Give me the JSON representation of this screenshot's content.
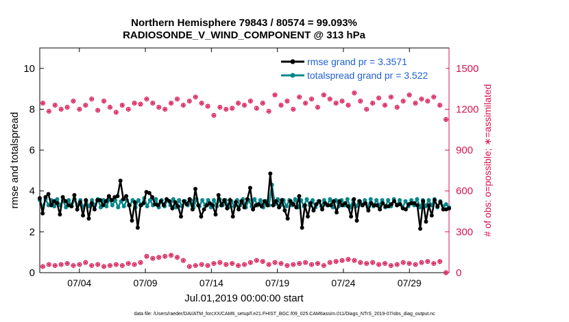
{
  "chart_data": {
    "type": "line",
    "title_line1": "Northern Hemisphere 79843 / 80574 = 99.093%",
    "title_line2": "RADIOSONDE_V_WIND_COMPONENT @ 313 hPa",
    "xlabel": "Jul.01,2019 00:00:00 start",
    "ylabel_left": "rmse and totalspread",
    "ylabel_right": "# of obs: o=possible; ∗=assimilated",
    "footer": "data file: /Users/raeder/DAI/ATM_forcXX/CAM6_setup/f.e21.FHIST_BGC.f09_025.CAM6assim.011/Diags_NTrS_2019-07/obs_diag_output.nc",
    "x_tick_labels": [
      "07/04",
      "07/09",
      "07/14",
      "07/19",
      "07/24",
      "07/29"
    ],
    "x_ticks": [
      4,
      9,
      14,
      19,
      24,
      29
    ],
    "x_range": [
      1,
      32
    ],
    "y_left_range": [
      0,
      11
    ],
    "y_left_ticks": [
      0,
      2,
      4,
      6,
      8,
      10
    ],
    "y_left_tick_labels": [
      "0",
      "2",
      "4",
      "6",
      "8",
      "10"
    ],
    "y_right_range": [
      0,
      1650
    ],
    "y_right_ticks": [
      0,
      300,
      600,
      900,
      1200,
      1500
    ],
    "y_right_tick_labels": [
      "0",
      "300",
      "600",
      "900",
      "1200",
      "1500"
    ],
    "legend": {
      "placement": "top-right",
      "entries": [
        "rmse grand pr = 3.3571",
        "totalspread grand pr = 3.522"
      ]
    },
    "colors": {
      "rmse": "#000000",
      "totalspread": "#00878a",
      "obs": "#d6134f",
      "right_axis": "#d6134f",
      "legend_text": "#1f5fd6"
    },
    "series": [
      {
        "name": "rmse",
        "values": [
          3.65,
          2.9,
          3.7,
          3.85,
          3.3,
          3.5,
          3.4,
          2.85,
          3.7,
          3.5,
          3.3,
          3.25,
          3.8,
          3.1,
          3.45,
          2.8,
          3.55,
          2.65,
          3.4,
          3.1,
          3.55,
          3.55,
          3.3,
          3.5,
          3.75,
          3.55,
          3.7,
          3.75,
          4.5,
          3.6,
          3.75,
          3.3,
          2.55,
          3.45,
          2.2,
          3.3,
          3.4,
          3.95,
          3.9,
          3.7,
          3.35,
          3.3,
          3.5,
          3.3,
          3.6,
          3.5,
          3.15,
          3.45,
          3.25,
          2.75,
          3.5,
          3.35,
          3.6,
          3.1,
          4.1,
          3.3,
          2.75,
          3.1,
          3.3,
          3.4,
          3.3,
          2.85,
          3.8,
          3.3,
          3.55,
          3.15,
          3.55,
          2.75,
          3.45,
          3.1,
          3.5,
          3.2,
          3.6,
          4.15,
          3.1,
          3.3,
          3.35,
          3.25,
          3.5,
          3.3,
          4.85,
          3.3,
          3.5,
          3.2,
          3.55,
          3.05,
          2.65,
          3.5,
          3.35,
          3.2,
          3.75,
          2.2,
          3.3,
          2.75,
          3.4,
          3.05,
          3.35,
          3.5,
          3.1,
          3.4,
          3.3,
          3.3,
          3.5,
          2.95,
          3.5,
          3.3,
          3.4,
          3.25,
          2.75,
          3.6,
          2.55,
          3.5,
          3.3,
          3.4,
          3.05,
          3.4,
          3.3,
          3.3,
          3.1,
          3.4,
          3.25,
          3.25,
          3.35,
          3.5,
          3.3,
          3.35,
          3.15,
          3.1,
          3.35,
          3.4,
          3.4,
          3.3,
          2.15,
          3.5,
          2.5,
          3.3,
          2.8,
          3.55,
          3.25,
          3.45,
          3.1,
          3.1,
          3.15
        ]
      },
      {
        "name": "totalspread",
        "values": [
          3.55,
          3.2,
          3.6,
          3.3,
          3.55,
          3.25,
          3.6,
          3.3,
          3.55,
          3.2,
          3.55,
          3.25,
          3.6,
          3.3,
          3.55,
          3.2,
          3.5,
          3.25,
          3.55,
          3.3,
          3.6,
          3.2,
          3.55,
          3.25,
          3.6,
          3.3,
          3.55,
          3.2,
          3.5,
          3.25,
          3.55,
          3.3,
          3.55,
          3.2,
          3.55,
          3.3,
          3.65,
          3.25,
          3.55,
          3.3,
          3.6,
          3.2,
          3.55,
          3.25,
          3.55,
          3.3,
          3.6,
          3.2,
          3.55,
          3.25,
          3.5,
          3.3,
          3.55,
          3.2,
          3.6,
          3.25,
          3.55,
          3.3,
          3.55,
          3.2,
          3.55,
          3.25,
          3.6,
          3.3,
          3.55,
          3.2,
          3.5,
          3.25,
          3.55,
          3.3,
          3.6,
          3.2,
          3.55,
          3.25,
          3.6,
          3.3,
          3.55,
          3.2,
          3.5,
          3.3,
          4.3,
          3.35,
          3.6,
          3.3,
          3.55,
          3.25,
          3.55,
          3.3,
          3.6,
          3.2,
          3.55,
          3.25,
          3.6,
          3.3,
          3.55,
          3.2,
          3.5,
          3.25,
          3.55,
          3.3,
          3.6,
          3.2,
          3.55,
          3.25,
          3.55,
          3.3,
          3.6,
          3.2,
          3.55,
          3.25,
          3.5,
          3.3,
          3.55,
          3.2,
          3.6,
          3.25,
          3.55,
          3.3,
          3.55,
          3.2,
          3.55,
          3.25,
          3.6,
          3.3,
          3.55,
          3.2,
          3.5,
          3.25,
          3.55,
          3.3,
          3.6,
          3.2,
          3.55,
          3.25,
          3.55,
          3.3,
          3.6,
          3.2,
          3.5,
          3.25,
          3.35,
          3.2
        ]
      },
      {
        "name": "obs possible (upper, left-axis units)",
        "values": [
          8.3,
          7.9,
          8.2,
          8.0,
          8.1,
          8.4,
          8.0,
          8.2,
          8.5,
          7.95,
          8.4,
          8.1,
          7.85,
          8.2,
          8.0,
          8.3,
          8.25,
          8.5,
          8.3,
          8.1,
          8.0,
          8.3,
          8.5,
          8.2,
          8.4,
          8.6,
          8.3,
          8.15,
          7.7,
          8.1,
          8.0,
          8.05,
          8.3,
          8.2,
          8.4,
          8.05,
          8.3,
          7.9,
          8.7,
          8.2,
          8.4,
          8.0,
          8.6,
          8.3,
          8.5,
          8.1,
          8.7,
          8.5,
          8.3,
          8.4,
          8.2,
          8.8,
          8.4,
          8.0,
          8.3,
          8.55,
          8.2,
          8.6,
          8.1,
          8.4,
          8.7,
          8.3,
          8.5,
          8.4,
          8.6,
          8.2,
          7.5
        ]
      },
      {
        "name": "obs possible (lower, left-axis units)",
        "values": [
          0.3,
          0.4,
          0.35,
          0.4,
          0.45,
          0.35,
          0.4,
          0.5,
          0.35,
          0.4,
          0.3,
          0.35,
          0.4,
          0.35,
          0.45,
          0.4,
          0.5,
          0.8,
          0.7,
          0.75,
          0.8,
          0.85,
          0.75,
          0.6,
          0.3,
          0.35,
          0.4,
          0.35,
          0.45,
          0.5,
          0.4,
          0.45,
          0.35,
          0.4,
          0.5,
          0.6,
          0.55,
          0.4,
          0.5,
          0.45,
          0.35,
          0.4,
          0.45,
          0.5,
          0.4,
          0.45,
          0.35,
          0.5,
          0.55,
          0.6,
          0.65,
          0.6,
          0.5,
          0.45,
          0.5,
          0.4,
          0.45,
          0.35,
          0.4,
          0.5,
          0.45,
          0.4,
          0.5,
          0.55,
          0.45,
          0.55,
          0.0
        ]
      }
    ]
  }
}
